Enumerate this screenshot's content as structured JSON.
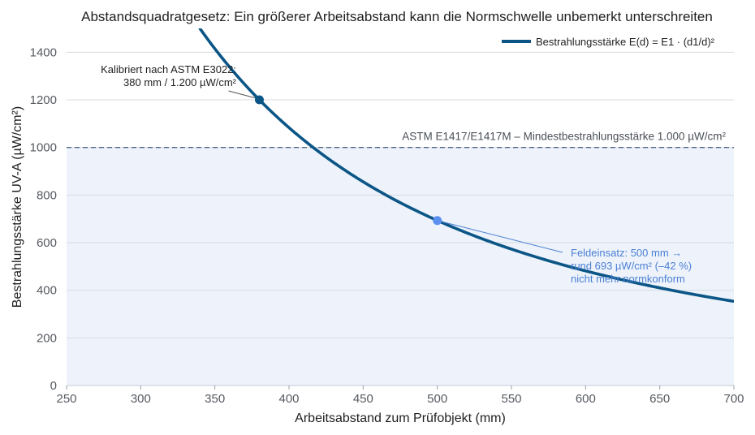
{
  "chart_data": {
    "type": "line",
    "title": "Abstandsquadratgesetz: Ein größerer Arbeitsabstand kann die Normschwelle unbemerkt unterschreiten",
    "xlabel": "Arbeitsabstand zum Prüfobjekt (mm)",
    "ylabel": "Bestrahlungsstärke UV-A (µW/cm²)",
    "xlim": [
      250,
      700
    ],
    "ylim": [
      0,
      1500
    ],
    "xticks": [
      250,
      300,
      350,
      400,
      450,
      500,
      550,
      600,
      650,
      700
    ],
    "yticks": [
      0,
      200,
      400,
      600,
      800,
      1000,
      1200,
      1400
    ],
    "grid": "horizontal",
    "legend_position": "top-right",
    "series": [
      {
        "name": "Bestrahlungsstärke E(d) = E1 · (d1/d)²",
        "color": "#0b5686",
        "reference": {
          "x": 380,
          "y": 1200
        },
        "x_range": [
          340,
          700
        ]
      }
    ],
    "threshold": {
      "value": 1000,
      "label": "ASTM E1417/E1417M – Mindestbestrahlungsstärke 1.000 µW/cm²",
      "color": "#4d6684",
      "fill_below": "#eef3fb"
    },
    "points": [
      {
        "x": 380,
        "y": 1200,
        "color": "#0b5686",
        "label_lines": [
          "Kalibriert nach ASTM E3022:",
          "380 mm / 1.200 µW/cm²"
        ]
      },
      {
        "x": 500,
        "y": 693,
        "color": "#5b8ff0",
        "label_lines": [
          "Feldeinsatz: 500 mm →",
          "rund 693 µW/cm² (–42 %)",
          "nicht mehr normkonform"
        ]
      }
    ]
  }
}
